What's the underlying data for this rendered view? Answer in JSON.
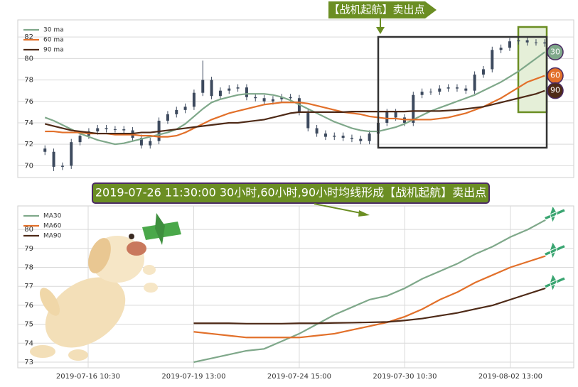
{
  "chart_data": [
    {
      "type": "candlestick",
      "annotation": "【战机起航】卖出点",
      "candle_color": "#3d4a5e",
      "xlim": [
        -3.1,
        60.3
      ],
      "ylim": [
        68.9,
        83.6
      ],
      "yticks": [
        70,
        72,
        74,
        76,
        78,
        80,
        82
      ],
      "grid": true,
      "legend": "upper left",
      "open": [
        71.6,
        71.3,
        69.9,
        70.0,
        72.2,
        72.8,
        73.2,
        73.5,
        73.4,
        73.4,
        73.3,
        72.6,
        71.9,
        72.3,
        74.2,
        74.8,
        75.2,
        75.5,
        76.8,
        78.0,
        76.5,
        77.0,
        77.2,
        77.3,
        76.4,
        76.3,
        76.0,
        76.2,
        76.4,
        76.3,
        75.0,
        73.5,
        73.0,
        72.7,
        72.8,
        72.6,
        72.5,
        72.3,
        73.0,
        74.0,
        75.0,
        74.5,
        74.0,
        76.6,
        76.9,
        76.9,
        77.2,
        77.3,
        77.2,
        77.0,
        78.5,
        79.0,
        80.8,
        81.0,
        81.6,
        81.7,
        81.5,
        81.5
      ],
      "high": [
        71.9,
        71.6,
        70.3,
        72.5,
        73.1,
        73.5,
        73.8,
        73.8,
        73.7,
        73.7,
        73.6,
        72.9,
        72.6,
        74.5,
        75.1,
        75.5,
        75.8,
        77.1,
        79.8,
        78.3,
        77.3,
        77.5,
        77.6,
        77.6,
        76.7,
        76.6,
        76.5,
        76.7,
        76.7,
        76.6,
        75.3,
        73.8,
        73.3,
        73.1,
        73.1,
        72.9,
        72.8,
        73.3,
        74.3,
        75.3,
        75.3,
        74.8,
        76.9,
        77.2,
        77.2,
        77.5,
        77.6,
        77.6,
        77.5,
        78.8,
        79.3,
        81.1,
        81.3,
        81.9,
        82.0,
        82.0,
        81.8,
        81.8
      ],
      "low": [
        71.0,
        69.5,
        69.6,
        69.7,
        71.9,
        72.5,
        72.9,
        73.1,
        73.1,
        73.0,
        72.3,
        71.6,
        71.6,
        72.0,
        73.9,
        74.5,
        74.9,
        75.2,
        76.5,
        76.2,
        76.2,
        76.7,
        76.9,
        76.1,
        76.0,
        75.7,
        75.7,
        75.9,
        76.0,
        74.7,
        73.2,
        72.7,
        72.4,
        72.4,
        72.3,
        72.2,
        72.0,
        72.0,
        72.7,
        73.7,
        74.2,
        73.7,
        73.7,
        76.3,
        76.6,
        76.6,
        76.9,
        76.9,
        76.7,
        76.7,
        78.2,
        78.7,
        80.5,
        80.7,
        81.3,
        81.2,
        81.2,
        81.1
      ],
      "close": [
        71.3,
        69.9,
        70.0,
        72.2,
        72.8,
        73.2,
        73.5,
        73.4,
        73.4,
        73.3,
        72.6,
        71.9,
        72.3,
        74.2,
        74.8,
        75.2,
        75.5,
        76.8,
        78.0,
        76.5,
        77.0,
        77.2,
        77.3,
        76.4,
        76.3,
        76.0,
        76.2,
        76.4,
        76.3,
        75.0,
        73.5,
        73.0,
        72.7,
        72.8,
        72.6,
        72.5,
        72.3,
        73.0,
        74.0,
        75.0,
        74.5,
        74.0,
        76.6,
        76.9,
        76.9,
        77.2,
        77.3,
        77.2,
        77.0,
        78.5,
        79.0,
        80.8,
        81.0,
        81.6,
        81.7,
        81.5,
        81.5,
        81.4
      ],
      "series": [
        {
          "name": "30 ma",
          "badge": "30",
          "color": "#7fa88a",
          "values": [
            74.5,
            74.2,
            73.8,
            73.4,
            73.0,
            72.7,
            72.4,
            72.2,
            72.0,
            72.1,
            72.3,
            72.5,
            72.7,
            72.9,
            73.1,
            73.4,
            73.9,
            74.6,
            75.3,
            75.9,
            76.2,
            76.4,
            76.6,
            76.7,
            76.7,
            76.7,
            76.6,
            76.4,
            76.1,
            75.7,
            75.3,
            74.9,
            74.5,
            74.1,
            73.8,
            73.5,
            73.3,
            73.2,
            73.2,
            73.4,
            73.6,
            73.9,
            74.3,
            74.7,
            75.1,
            75.4,
            75.7,
            76.0,
            76.3,
            76.6,
            77.0,
            77.4,
            77.8,
            78.3,
            78.8,
            79.4,
            80.0,
            80.6
          ]
        },
        {
          "name": "60 ma",
          "badge": "60",
          "color": "#e2702a",
          "values": [
            73.2,
            73.2,
            73.1,
            73.1,
            73.1,
            73.0,
            73.0,
            73.0,
            72.9,
            72.9,
            72.9,
            72.8,
            72.8,
            72.7,
            72.7,
            72.8,
            73.1,
            73.5,
            73.9,
            74.3,
            74.6,
            74.9,
            75.1,
            75.3,
            75.5,
            75.7,
            75.8,
            75.9,
            75.9,
            75.9,
            75.8,
            75.6,
            75.4,
            75.2,
            75.0,
            74.9,
            74.8,
            74.6,
            74.5,
            74.4,
            74.4,
            74.3,
            74.3,
            74.3,
            74.3,
            74.4,
            74.5,
            74.7,
            74.9,
            75.2,
            75.5,
            75.9,
            76.3,
            76.8,
            77.3,
            77.8,
            78.1,
            78.4
          ]
        },
        {
          "name": "90 ma",
          "badge": "90",
          "color": "#4e2a17",
          "values": [
            73.9,
            73.7,
            73.5,
            73.3,
            73.2,
            73.1,
            73.0,
            73.0,
            73.0,
            73.0,
            73.0,
            73.1,
            73.1,
            73.2,
            73.3,
            73.4,
            73.5,
            73.6,
            73.7,
            73.8,
            73.9,
            74.0,
            74.0,
            74.1,
            74.2,
            74.3,
            74.5,
            74.7,
            74.9,
            75.0,
            75.0,
            75.0,
            75.0,
            75.0,
            75.0,
            75.05,
            75.05,
            75.05,
            75.05,
            75.05,
            75.05,
            75.05,
            75.1,
            75.1,
            75.1,
            75.1,
            75.15,
            75.2,
            75.3,
            75.4,
            75.5,
            75.7,
            75.9,
            76.1,
            76.3,
            76.5,
            76.7,
            77.0
          ]
        }
      ]
    },
    {
      "type": "line",
      "annotation": "2019-07-26 11:30:00 30小时,60小时,90小时均线形成【战机起航】卖出点",
      "xlim": [
        -3,
        28.6
      ],
      "ylim": [
        72.7,
        81.24
      ],
      "yticks": [
        73,
        74,
        75,
        76,
        77,
        78,
        79,
        80
      ],
      "grid": true,
      "legend": "upper left",
      "xticks": [
        {
          "value": 1,
          "label": "2019-07-16 10:30"
        },
        {
          "value": 7,
          "label": "2019-07-19 13:00"
        },
        {
          "value": 13,
          "label": "2019-07-24 15:00"
        },
        {
          "value": 19,
          "label": "2019-07-30 10:30"
        },
        {
          "value": 25,
          "label": "2019-08-02 13:00"
        }
      ],
      "x": [
        7,
        8,
        9,
        10,
        11,
        12,
        13,
        14,
        15,
        16,
        17,
        18,
        19,
        20,
        21,
        22,
        23,
        24,
        25,
        26,
        27
      ],
      "series": [
        {
          "name": "MA30",
          "color": "#7fa88a",
          "values": [
            73.0,
            73.2,
            73.4,
            73.6,
            73.7,
            74.1,
            74.5,
            75.0,
            75.5,
            75.9,
            76.3,
            76.5,
            76.9,
            77.4,
            77.8,
            78.2,
            78.7,
            79.1,
            79.6,
            80.0,
            80.5
          ]
        },
        {
          "name": "MA60",
          "color": "#e2702a",
          "values": [
            74.6,
            74.5,
            74.4,
            74.3,
            74.3,
            74.3,
            74.3,
            74.4,
            74.5,
            74.7,
            74.9,
            75.1,
            75.4,
            75.8,
            76.3,
            76.7,
            77.2,
            77.6,
            78.0,
            78.3,
            78.6
          ]
        },
        {
          "name": "MA90",
          "color": "#4e2a17",
          "values": [
            75.05,
            75.05,
            75.05,
            75.03,
            75.03,
            75.03,
            75.05,
            75.05,
            75.07,
            75.08,
            75.1,
            75.12,
            75.2,
            75.3,
            75.45,
            75.6,
            75.8,
            76.0,
            76.3,
            76.6,
            76.9
          ]
        }
      ]
    }
  ]
}
